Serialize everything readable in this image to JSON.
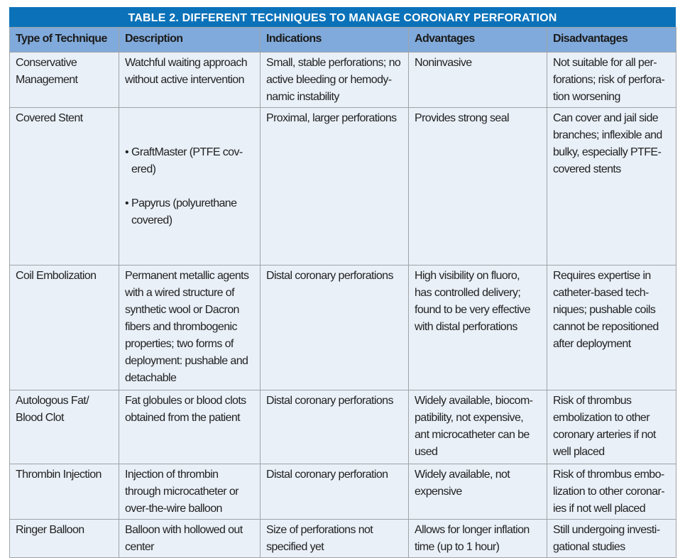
{
  "title": "TABLE 2.  DIFFERENT TECHNIQUES TO MANAGE CORONARY PERFORATION",
  "headers": [
    "Type of Technique",
    "Description",
    "Indications",
    "Advantages",
    "Disadvantages"
  ],
  "rows": [
    {
      "type": "Conservative\nManagement",
      "description": "Watchful waiting approach\nwithout active intervention",
      "indications": "Small, stable perforations; no\nactive bleeding or hemody-\nnamic instability",
      "advantages": "Noninvasive",
      "disadvantages": "Not suitable for all per-\nforations; risk of perfora-\ntion worsening"
    },
    {
      "type": "Covered Stent",
      "description_items": [
        "GraftMaster (PTFE cov-\nered)",
        "Papyrus (polyurethane\ncovered)"
      ],
      "indications": "Proximal, larger perforations",
      "advantages": "Provides strong seal",
      "disadvantages": "Can cover and jail side\nbranches; inflexible and\nbulky, especially PTFE-\ncovered stents"
    },
    {
      "type": "Coil Embolization",
      "description": "Permanent metallic agents\nwith a wired structure of\nsynthetic wool or Dacron\nfibers and thrombogenic\nproperties; two forms of\ndeployment: pushable and\ndetachable",
      "indications": "Distal coronary perforations",
      "advantages": "High visibility on fluoro,\nhas controlled delivery;\nfound to be very effective\nwith distal perforations",
      "disadvantages": "Requires expertise in\ncatheter-based tech-\nniques; pushable coils\ncannot be repositioned\nafter deployment"
    },
    {
      "type": "Autologous Fat/\nBlood Clot",
      "description": "Fat globules or blood clots\nobtained from the patient",
      "indications": "Distal coronary perforations",
      "advantages": "Widely available, biocom-\npatibility, not expensive,\nant microcatheter can be\nused",
      "disadvantages": "Risk of thrombus\nembolization to other\ncoronary arteries if not\nwell placed"
    },
    {
      "type": "Thrombin Injection",
      "description": "Injection of thrombin\nthrough microcatheter or\nover-the-wire balloon",
      "indications": "Distal coronary perforation",
      "advantages": "Widely available, not\nexpensive",
      "disadvantages": "Risk of thrombus embo-\nlization to other coronar-\nies if not well placed"
    },
    {
      "type": "Ringer Balloon",
      "description": "Balloon with hollowed out\ncenter",
      "indications": "Size of perforations not\nspecified yet",
      "advantages": "Allows for longer inflation\ntime (up to 1 hour)",
      "disadvantages": "Still undergoing investi-\ngational studies"
    }
  ],
  "colors": {
    "title_bg": "#0b72b9",
    "header_bg": "#80aadb",
    "cell_bg": "#e9f0f8"
  }
}
